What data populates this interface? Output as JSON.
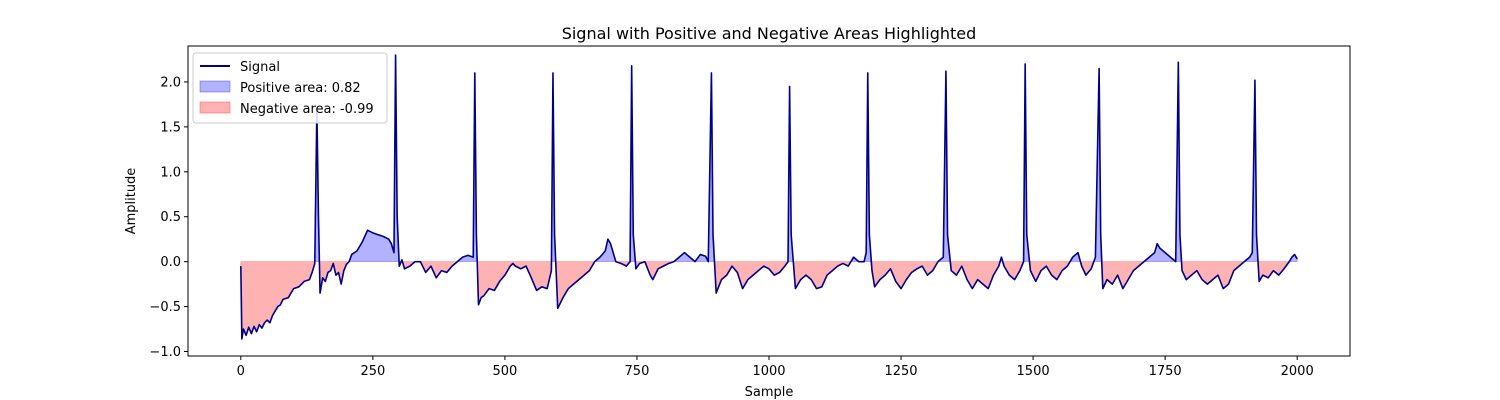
{
  "chart_data": {
    "type": "area",
    "title": "Signal with Positive and Negative Areas Highlighted",
    "xlabel": "Sample",
    "ylabel": "Amplitude",
    "xlim": [
      -100,
      2100
    ],
    "ylim": [
      -1.05,
      2.4
    ],
    "xticks": [
      0,
      250,
      500,
      750,
      1000,
      1250,
      1500,
      1750,
      2000
    ],
    "yticks": [
      -1.0,
      -0.5,
      0.0,
      0.5,
      1.0,
      1.5,
      2.0
    ],
    "xtick_labels": [
      "0",
      "250",
      "500",
      "750",
      "1000",
      "1250",
      "1500",
      "1750",
      "2000"
    ],
    "ytick_labels": [
      "−1.0",
      "−0.5",
      "0.0",
      "0.5",
      "1.0",
      "1.5",
      "2.0"
    ],
    "grid": false,
    "legend_position": "top-left",
    "colors": {
      "signal": "#00008b",
      "positive": "#0000ff",
      "negative": "#ff0000"
    },
    "series": [
      {
        "name": "Signal",
        "kind": "line",
        "points": [
          [
            0,
            -0.05
          ],
          [
            2,
            -0.86
          ],
          [
            5,
            -0.75
          ],
          [
            10,
            -0.82
          ],
          [
            15,
            -0.73
          ],
          [
            20,
            -0.8
          ],
          [
            25,
            -0.72
          ],
          [
            30,
            -0.78
          ],
          [
            35,
            -0.7
          ],
          [
            40,
            -0.74
          ],
          [
            45,
            -0.68
          ],
          [
            50,
            -0.65
          ],
          [
            55,
            -0.68
          ],
          [
            60,
            -0.6
          ],
          [
            65,
            -0.55
          ],
          [
            70,
            -0.5
          ],
          [
            75,
            -0.48
          ],
          [
            80,
            -0.42
          ],
          [
            90,
            -0.4
          ],
          [
            100,
            -0.3
          ],
          [
            110,
            -0.28
          ],
          [
            120,
            -0.22
          ],
          [
            130,
            -0.2
          ],
          [
            135,
            -0.12
          ],
          [
            140,
            -0.02
          ],
          [
            144,
            1.7
          ],
          [
            147,
            0.5
          ],
          [
            150,
            -0.35
          ],
          [
            155,
            -0.18
          ],
          [
            160,
            -0.22
          ],
          [
            165,
            -0.12
          ],
          [
            170,
            -0.1
          ],
          [
            175,
            -0.02
          ],
          [
            180,
            -0.15
          ],
          [
            185,
            -0.12
          ],
          [
            190,
            -0.25
          ],
          [
            195,
            -0.1
          ],
          [
            200,
            -0.03
          ],
          [
            205,
            0.0
          ],
          [
            210,
            0.08
          ],
          [
            220,
            0.12
          ],
          [
            230,
            0.22
          ],
          [
            240,
            0.35
          ],
          [
            250,
            0.32
          ],
          [
            260,
            0.3
          ],
          [
            270,
            0.28
          ],
          [
            280,
            0.25
          ],
          [
            285,
            0.2
          ],
          [
            290,
            0.1
          ],
          [
            293,
            2.3
          ],
          [
            296,
            0.5
          ],
          [
            300,
            -0.05
          ],
          [
            305,
            0.02
          ],
          [
            310,
            -0.08
          ],
          [
            320,
            -0.05
          ],
          [
            330,
            0.0
          ],
          [
            340,
            0.0
          ],
          [
            350,
            -0.12
          ],
          [
            360,
            -0.05
          ],
          [
            370,
            -0.18
          ],
          [
            380,
            -0.1
          ],
          [
            390,
            -0.12
          ],
          [
            400,
            -0.05
          ],
          [
            410,
            0.0
          ],
          [
            420,
            0.05
          ],
          [
            430,
            0.07
          ],
          [
            440,
            0.05
          ],
          [
            443,
            2.1
          ],
          [
            446,
            0.3
          ],
          [
            450,
            -0.48
          ],
          [
            455,
            -0.4
          ],
          [
            460,
            -0.38
          ],
          [
            470,
            -0.3
          ],
          [
            480,
            -0.32
          ],
          [
            490,
            -0.22
          ],
          [
            500,
            -0.15
          ],
          [
            510,
            -0.05
          ],
          [
            515,
            -0.02
          ],
          [
            520,
            -0.05
          ],
          [
            530,
            -0.08
          ],
          [
            540,
            -0.05
          ],
          [
            550,
            -0.18
          ],
          [
            560,
            -0.32
          ],
          [
            570,
            -0.28
          ],
          [
            580,
            -0.3
          ],
          [
            588,
            -0.1
          ],
          [
            591,
            2.1
          ],
          [
            594,
            0.3
          ],
          [
            600,
            -0.52
          ],
          [
            610,
            -0.4
          ],
          [
            620,
            -0.3
          ],
          [
            630,
            -0.25
          ],
          [
            640,
            -0.2
          ],
          [
            650,
            -0.15
          ],
          [
            660,
            -0.1
          ],
          [
            670,
            0.0
          ],
          [
            680,
            0.05
          ],
          [
            690,
            0.12
          ],
          [
            695,
            0.25
          ],
          [
            700,
            0.2
          ],
          [
            710,
            0.0
          ],
          [
            720,
            -0.02
          ],
          [
            730,
            -0.05
          ],
          [
            737,
            0.0
          ],
          [
            740,
            2.18
          ],
          [
            743,
            0.3
          ],
          [
            748,
            -0.08
          ],
          [
            755,
            -0.02
          ],
          [
            765,
            0.0
          ],
          [
            775,
            -0.15
          ],
          [
            780,
            -0.2
          ],
          [
            790,
            -0.08
          ],
          [
            800,
            -0.05
          ],
          [
            810,
            -0.02
          ],
          [
            820,
            0.0
          ],
          [
            830,
            0.05
          ],
          [
            840,
            0.1
          ],
          [
            850,
            0.05
          ],
          [
            860,
            0.0
          ],
          [
            870,
            0.08
          ],
          [
            880,
            0.06
          ],
          [
            885,
            0.0
          ],
          [
            891,
            2.1
          ],
          [
            894,
            0.3
          ],
          [
            900,
            -0.35
          ],
          [
            910,
            -0.2
          ],
          [
            920,
            -0.15
          ],
          [
            930,
            -0.05
          ],
          [
            940,
            -0.12
          ],
          [
            950,
            -0.3
          ],
          [
            960,
            -0.2
          ],
          [
            970,
            -0.15
          ],
          [
            980,
            -0.1
          ],
          [
            990,
            -0.05
          ],
          [
            1000,
            -0.08
          ],
          [
            1010,
            -0.15
          ],
          [
            1020,
            -0.12
          ],
          [
            1030,
            -0.05
          ],
          [
            1036,
            0.0
          ],
          [
            1039,
            1.95
          ],
          [
            1042,
            0.3
          ],
          [
            1050,
            -0.3
          ],
          [
            1060,
            -0.2
          ],
          [
            1070,
            -0.15
          ],
          [
            1080,
            -0.2
          ],
          [
            1090,
            -0.3
          ],
          [
            1100,
            -0.28
          ],
          [
            1110,
            -0.15
          ],
          [
            1120,
            -0.1
          ],
          [
            1130,
            -0.05
          ],
          [
            1140,
            -0.02
          ],
          [
            1150,
            -0.05
          ],
          [
            1160,
            0.05
          ],
          [
            1170,
            0.0
          ],
          [
            1180,
            0.0
          ],
          [
            1184,
            0.1
          ],
          [
            1187,
            2.1
          ],
          [
            1190,
            0.3
          ],
          [
            1195,
            -0.1
          ],
          [
            1200,
            -0.28
          ],
          [
            1210,
            -0.2
          ],
          [
            1220,
            -0.15
          ],
          [
            1230,
            -0.08
          ],
          [
            1240,
            -0.22
          ],
          [
            1250,
            -0.3
          ],
          [
            1260,
            -0.2
          ],
          [
            1270,
            -0.12
          ],
          [
            1280,
            -0.08
          ],
          [
            1290,
            -0.05
          ],
          [
            1300,
            -0.15
          ],
          [
            1310,
            -0.1
          ],
          [
            1320,
            0.0
          ],
          [
            1330,
            0.05
          ],
          [
            1335,
            2.12
          ],
          [
            1338,
            0.3
          ],
          [
            1345,
            -0.1
          ],
          [
            1355,
            -0.15
          ],
          [
            1365,
            -0.05
          ],
          [
            1375,
            -0.2
          ],
          [
            1385,
            -0.3
          ],
          [
            1395,
            -0.2
          ],
          [
            1405,
            -0.25
          ],
          [
            1415,
            -0.3
          ],
          [
            1425,
            -0.15
          ],
          [
            1435,
            -0.05
          ],
          [
            1440,
            0.05
          ],
          [
            1445,
            -0.05
          ],
          [
            1455,
            -0.15
          ],
          [
            1465,
            -0.2
          ],
          [
            1475,
            -0.1
          ],
          [
            1482,
            0.0
          ],
          [
            1485,
            2.2
          ],
          [
            1488,
            0.3
          ],
          [
            1495,
            -0.1
          ],
          [
            1505,
            -0.22
          ],
          [
            1515,
            -0.1
          ],
          [
            1525,
            -0.05
          ],
          [
            1535,
            -0.15
          ],
          [
            1545,
            -0.2
          ],
          [
            1555,
            -0.1
          ],
          [
            1565,
            -0.05
          ],
          [
            1575,
            0.05
          ],
          [
            1585,
            0.1
          ],
          [
            1592,
            -0.05
          ],
          [
            1600,
            -0.15
          ],
          [
            1610,
            -0.08
          ],
          [
            1618,
            0.05
          ],
          [
            1625,
            2.15
          ],
          [
            1628,
            0.3
          ],
          [
            1632,
            -0.3
          ],
          [
            1640,
            -0.2
          ],
          [
            1650,
            -0.25
          ],
          [
            1660,
            -0.15
          ],
          [
            1670,
            -0.3
          ],
          [
            1680,
            -0.2
          ],
          [
            1690,
            -0.1
          ],
          [
            1700,
            -0.05
          ],
          [
            1710,
            0.0
          ],
          [
            1720,
            0.05
          ],
          [
            1730,
            0.1
          ],
          [
            1735,
            0.2
          ],
          [
            1740,
            0.15
          ],
          [
            1750,
            0.1
          ],
          [
            1760,
            0.05
          ],
          [
            1770,
            0.0
          ],
          [
            1775,
            2.22
          ],
          [
            1778,
            0.3
          ],
          [
            1782,
            -0.1
          ],
          [
            1790,
            -0.2
          ],
          [
            1800,
            -0.15
          ],
          [
            1810,
            -0.1
          ],
          [
            1820,
            -0.2
          ],
          [
            1830,
            -0.25
          ],
          [
            1840,
            -0.2
          ],
          [
            1850,
            -0.15
          ],
          [
            1860,
            -0.3
          ],
          [
            1870,
            -0.25
          ],
          [
            1880,
            -0.1
          ],
          [
            1890,
            -0.05
          ],
          [
            1900,
            0.0
          ],
          [
            1910,
            0.05
          ],
          [
            1915,
            0.1
          ],
          [
            1920,
            2.02
          ],
          [
            1923,
            0.3
          ],
          [
            1928,
            -0.22
          ],
          [
            1935,
            -0.15
          ],
          [
            1945,
            -0.18
          ],
          [
            1955,
            -0.1
          ],
          [
            1965,
            -0.15
          ],
          [
            1975,
            -0.08
          ],
          [
            1985,
            0.0
          ],
          [
            1990,
            0.05
          ],
          [
            1995,
            0.08
          ],
          [
            1998,
            0.05
          ],
          [
            2000,
            0.03
          ]
        ]
      },
      {
        "name": "Positive area: 0.82",
        "kind": "fill-positive"
      },
      {
        "name": "Negative area: -0.99",
        "kind": "fill-negative"
      }
    ]
  }
}
